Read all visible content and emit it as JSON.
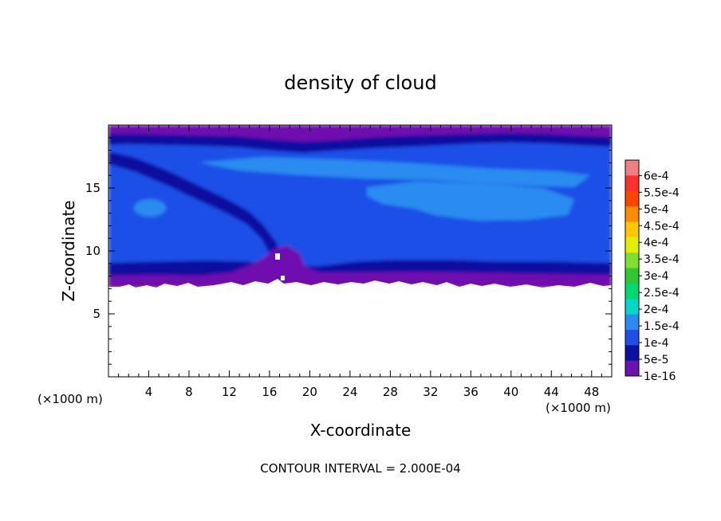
{
  "chart_data": {
    "type": "heatmap",
    "title": "density of cloud",
    "xlabel": "X-coordinate",
    "ylabel": "Z-coordinate",
    "x_unit": "(×1000 m)",
    "z_unit": "(×1000 m)",
    "xlim": [
      0,
      50
    ],
    "ylim": [
      0,
      20
    ],
    "x_ticks": [
      4,
      8,
      12,
      16,
      20,
      24,
      28,
      32,
      36,
      40,
      44,
      48
    ],
    "y_ticks": [
      5,
      10,
      15
    ],
    "footer": "CONTOUR INTERVAL = 2.000E-04",
    "colorbar": {
      "labels": [
        "6e-4",
        "5.5e-4",
        "5e-4",
        "4.5e-4",
        "4e-4",
        "3.5e-4",
        "3e-4",
        "2.5e-4",
        "2e-4",
        "1.5e-4",
        "1e-4",
        "5e-5",
        "1e-16"
      ],
      "levels": [
        0.0006,
        0.00055,
        0.0005,
        0.00045,
        0.0004,
        0.00035,
        0.0003,
        0.00025,
        0.0002,
        0.00015,
        0.0001,
        5e-05,
        1e-16
      ],
      "colors": [
        "#f08080",
        "#ff3030",
        "#ff4500",
        "#ff8c00",
        "#ffc800",
        "#e0f000",
        "#80e030",
        "#30c830",
        "#00d870",
        "#00d8c8",
        "#2a8cf0",
        "#1e50e8",
        "#0a10a0",
        "#7010b0"
      ]
    },
    "field_summary": {
      "cloud_base_z": 7,
      "cloud_top_z": 20,
      "low_density_layers": [
        "base 7-8",
        "top 19-20"
      ],
      "max_value_approx": 0.00015
    }
  }
}
